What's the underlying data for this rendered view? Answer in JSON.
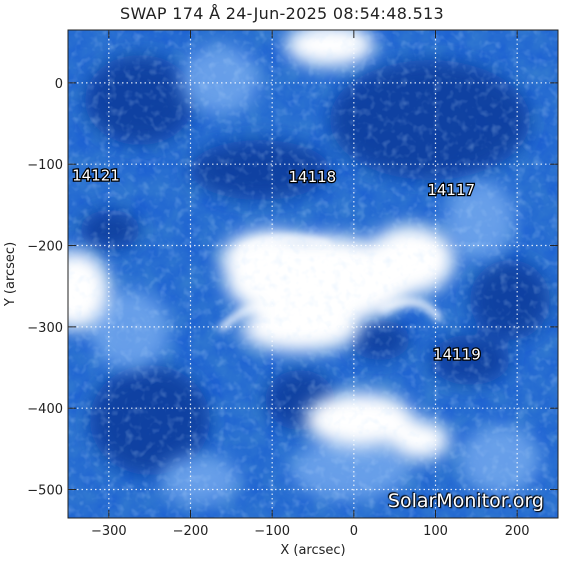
{
  "title": "SWAP 174 Å 24-Jun-2025 08:54:48.513",
  "watermark": "SolarMonitor.org",
  "axes": {
    "xlabel": "X (arcsec)",
    "ylabel": "Y (arcsec)",
    "xlim": [
      -350,
      250
    ],
    "ylim": [
      -535,
      65
    ],
    "x_ticks": [
      -300,
      -200,
      -100,
      0,
      100,
      200
    ],
    "y_ticks": [
      0,
      -100,
      -200,
      -300,
      -400,
      -500
    ],
    "grid": "dotted"
  },
  "regions": [
    {
      "label": "14121",
      "x": -345,
      "y": -120
    },
    {
      "label": "14118",
      "x": -80,
      "y": -122
    },
    {
      "label": "14117",
      "x": 90,
      "y": -138
    },
    {
      "label": "14119",
      "x": 97,
      "y": -340
    }
  ],
  "colors": {
    "base": "#1a5fd0",
    "dark": "#0a3a9a",
    "bright": "#ffffff",
    "mid": "#5f98e8"
  }
}
